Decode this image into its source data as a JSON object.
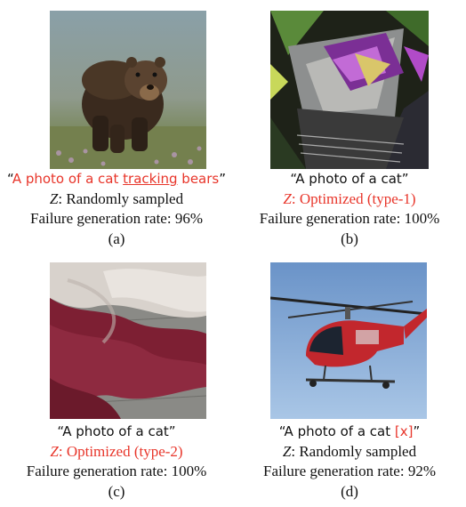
{
  "panels": {
    "a": {
      "image_desc": "brown bear walking in grassy field",
      "prompt_open": "“",
      "prompt_pre": "A photo of a cat ",
      "prompt_emph": "tracking",
      "prompt_post": " bears",
      "prompt_close": "”",
      "z_label": "Z",
      "z_text": ": Randomly sampled",
      "rate": "Failure generation rate: 96%",
      "tag": "(a)"
    },
    "b": {
      "image_desc": "abstract colorful distorted shapes",
      "prompt": "“A photo of a cat”",
      "z_label": "Z",
      "z_text": ": Optimized (type-1)",
      "rate": "Failure generation rate: 100%",
      "tag": "(b)"
    },
    "c": {
      "image_desc": "folded maroon and white blanket",
      "prompt": "“A photo of a cat”",
      "z_label": "Z",
      "z_text": ": Optimized (type-2)",
      "rate": "Failure generation rate: 100%",
      "tag": "(c)"
    },
    "d": {
      "image_desc": "red helicopter in blue sky",
      "prompt_pre": "“A photo of a cat ",
      "prompt_token": "[x]",
      "prompt_post": "”",
      "z_label": "Z",
      "z_text": ": Randomly sampled",
      "rate": "Failure generation rate: 92%",
      "tag": "(d)"
    }
  },
  "colors": {
    "accent_red": "#e8352a"
  }
}
